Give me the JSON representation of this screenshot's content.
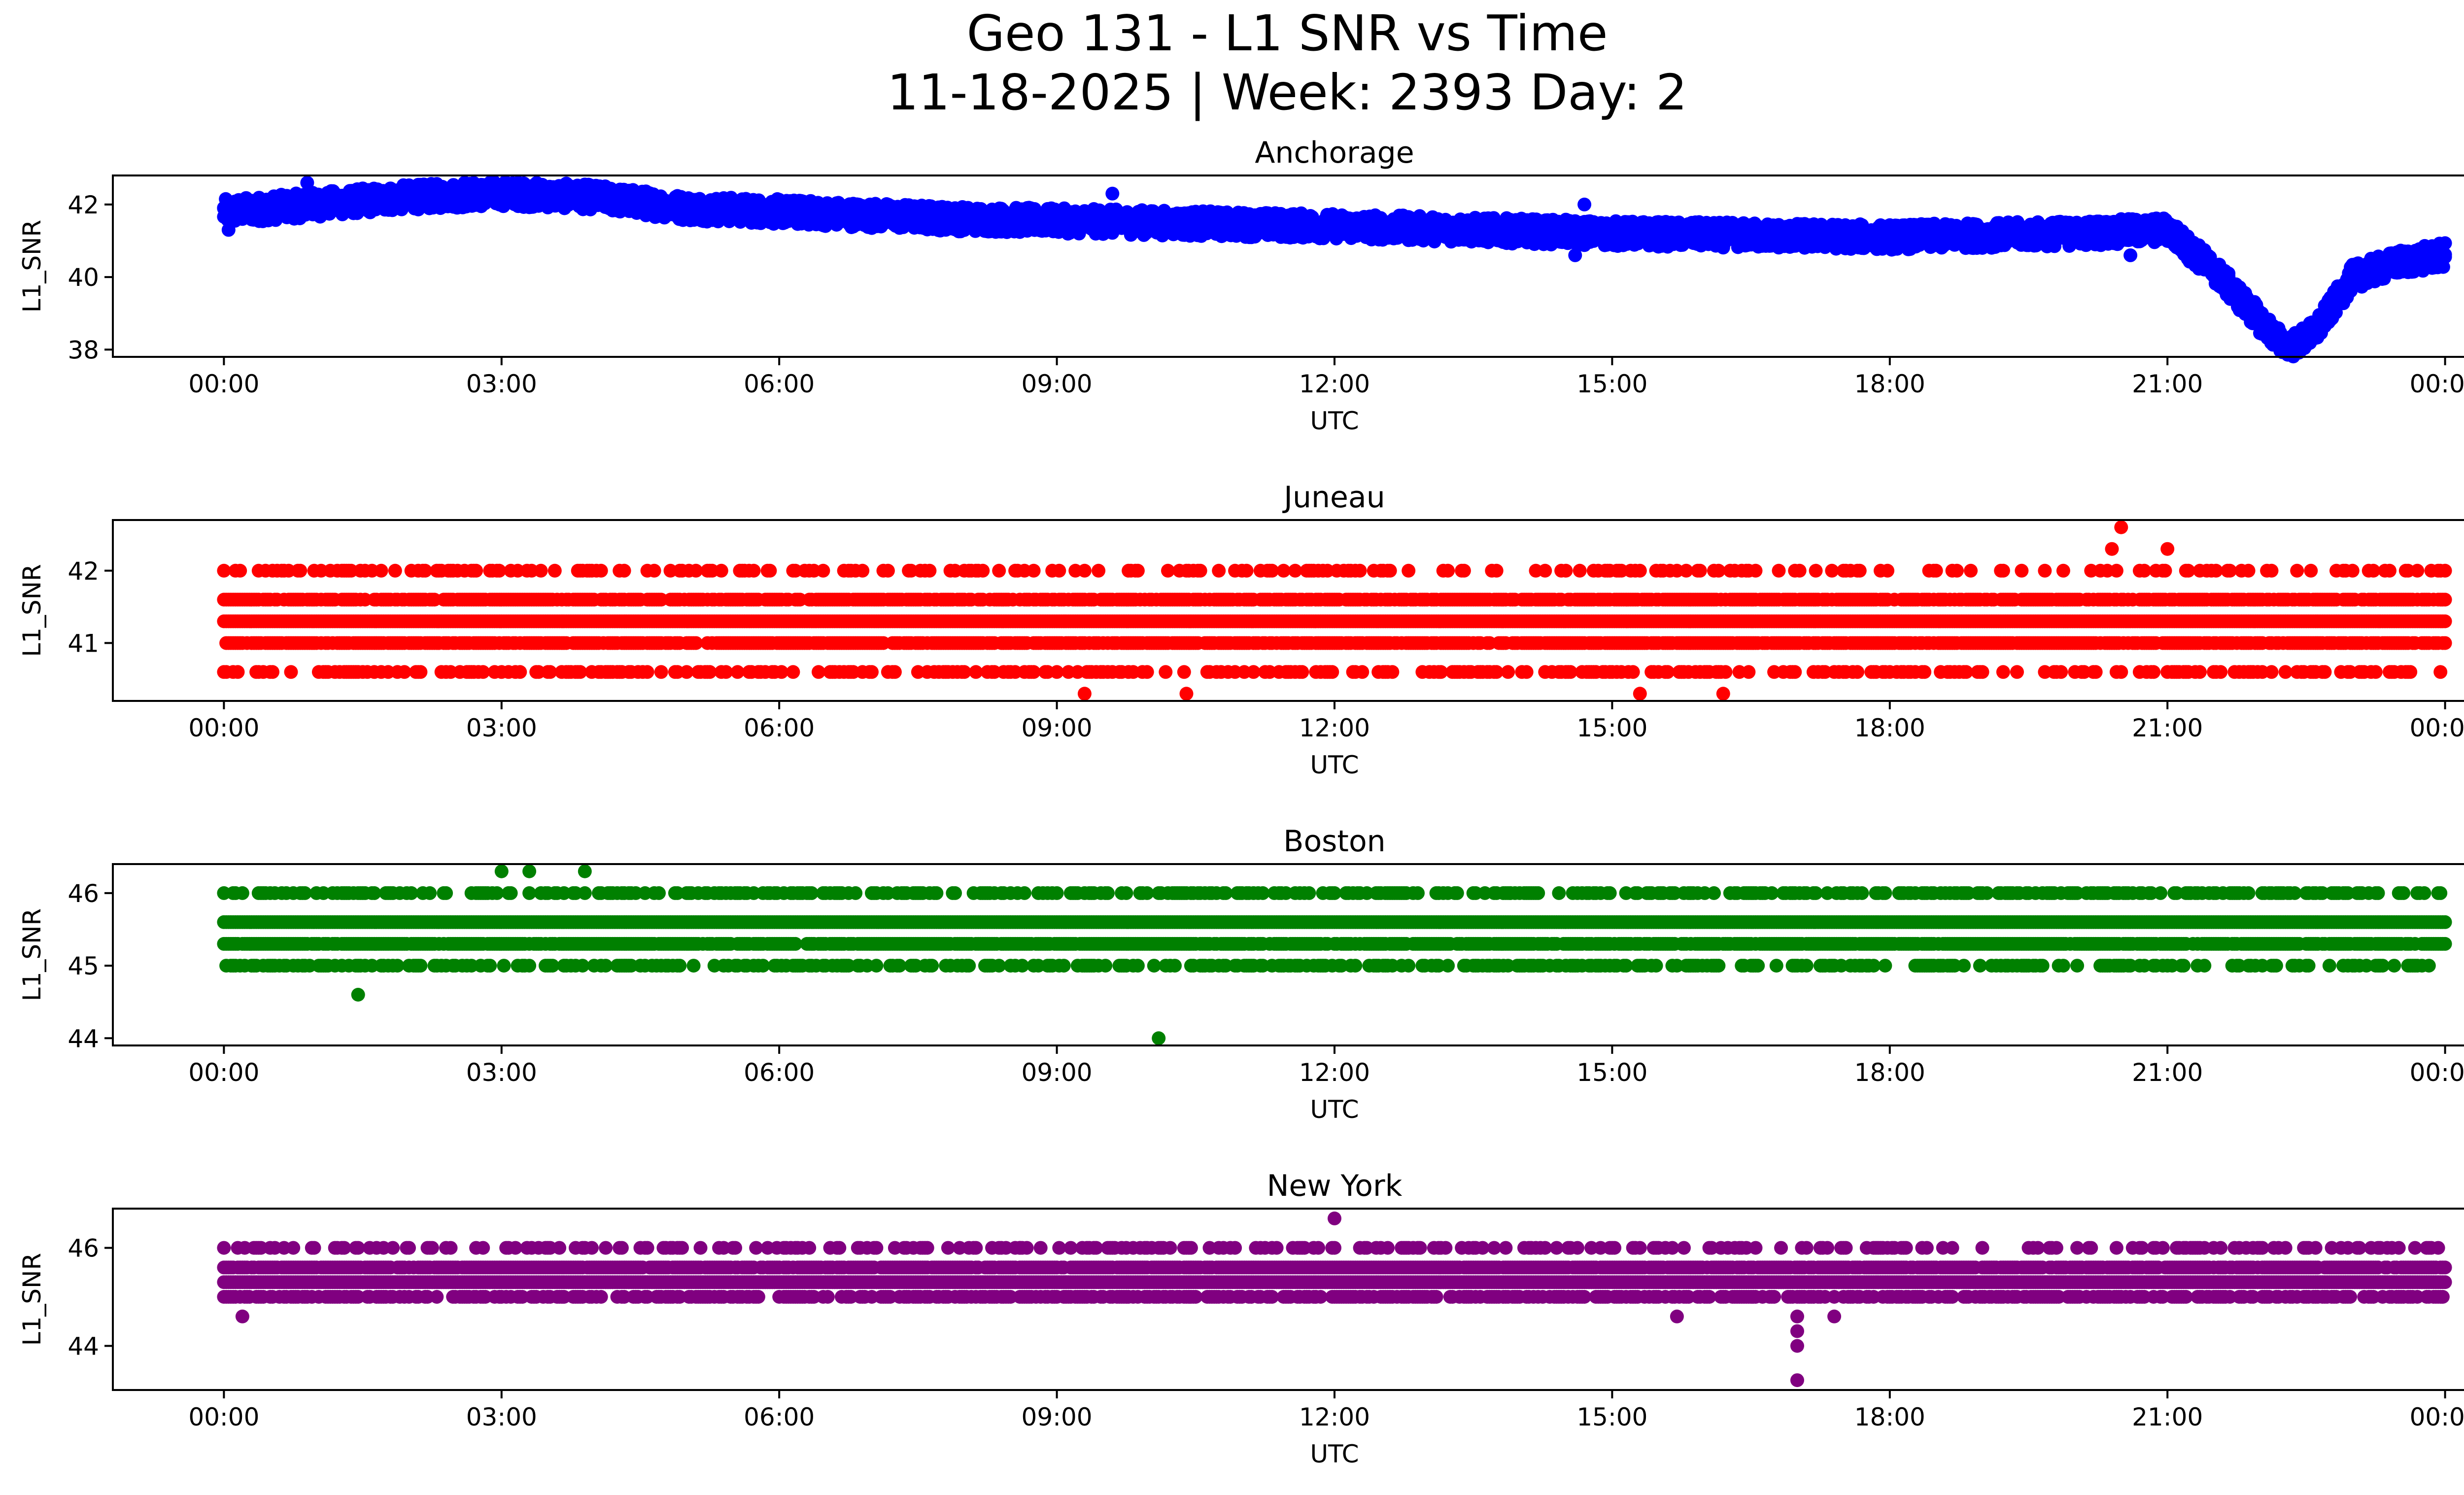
{
  "figure": {
    "title_line1": "Geo 131 - L1 SNR vs Time",
    "title_line2": "11-18-2025 | Week: 2393 Day: 2"
  },
  "chart_data": [
    {
      "type": "scatter",
      "title": "Anchorage",
      "xlabel": "UTC",
      "ylabel": "L1_SNR",
      "color": "#0000ff",
      "xlim": [
        -1.2,
        25.2
      ],
      "ylim": [
        37.8,
        42.8
      ],
      "x_ticks": [
        0,
        3,
        6,
        9,
        12,
        15,
        18,
        21,
        24
      ],
      "x_tick_labels": [
        "00:00",
        "03:00",
        "06:00",
        "09:00",
        "12:00",
        "15:00",
        "18:00",
        "21:00",
        "00:00"
      ],
      "y_ticks": [
        38,
        40,
        42
      ],
      "y_tick_labels": [
        "38",
        "40",
        "42"
      ],
      "profile": [
        [
          0,
          41.8
        ],
        [
          1,
          42.0
        ],
        [
          2,
          42.2
        ],
        [
          3,
          42.3
        ],
        [
          4,
          42.2
        ],
        [
          5,
          41.9
        ],
        [
          6,
          41.8
        ],
        [
          8,
          41.6
        ],
        [
          10,
          41.5
        ],
        [
          12,
          41.4
        ],
        [
          15,
          41.2
        ],
        [
          18,
          41.1
        ],
        [
          20,
          41.2
        ],
        [
          21,
          41.3
        ],
        [
          21.5,
          40.2
        ],
        [
          22,
          38.8
        ],
        [
          22.3,
          38.0
        ],
        [
          22.6,
          38.5
        ],
        [
          23,
          40.0
        ],
        [
          23.5,
          40.4
        ],
        [
          24,
          40.6
        ]
      ],
      "spread": 0.35,
      "outliers": [
        [
          0.05,
          41.3
        ],
        [
          0.9,
          42.6
        ],
        [
          2.6,
          42.6
        ],
        [
          9.6,
          42.3
        ],
        [
          14.6,
          40.6
        ],
        [
          14.7,
          42.0
        ],
        [
          20.6,
          40.6
        ]
      ]
    },
    {
      "type": "scatter",
      "title": "Juneau",
      "xlabel": "UTC",
      "ylabel": "L1_SNR",
      "color": "#ff0000",
      "xlim": [
        -1.2,
        25.2
      ],
      "ylim": [
        40.2,
        42.7
      ],
      "x_ticks": [
        0,
        3,
        6,
        9,
        12,
        15,
        18,
        21,
        24
      ],
      "x_tick_labels": [
        "00:00",
        "03:00",
        "06:00",
        "09:00",
        "12:00",
        "15:00",
        "18:00",
        "21:00",
        "00:00"
      ],
      "y_ticks": [
        41,
        42
      ],
      "y_tick_labels": [
        "41",
        "42"
      ],
      "quantized_levels": [
        40.6,
        41.0,
        41.3,
        41.6,
        42.0
      ],
      "level_prob": [
        0.35,
        0.85,
        1.0,
        0.8,
        0.25
      ],
      "outliers": [
        [
          0.1,
          40.6
        ],
        [
          2.9,
          42.0
        ],
        [
          9.3,
          40.3
        ],
        [
          10.4,
          40.3
        ],
        [
          12.6,
          42.0
        ],
        [
          15.3,
          40.3
        ],
        [
          16.2,
          40.3
        ],
        [
          20.4,
          42.3
        ],
        [
          20.5,
          42.6
        ],
        [
          21,
          42.3
        ]
      ]
    },
    {
      "type": "scatter",
      "title": "Boston",
      "xlabel": "UTC",
      "ylabel": "L1_SNR",
      "color": "#008000",
      "xlim": [
        -1.2,
        25.2
      ],
      "ylim": [
        43.9,
        46.4
      ],
      "x_ticks": [
        0,
        3,
        6,
        9,
        12,
        15,
        18,
        21,
        24
      ],
      "x_tick_labels": [
        "00:00",
        "03:00",
        "06:00",
        "09:00",
        "12:00",
        "15:00",
        "18:00",
        "21:00",
        "00:00"
      ],
      "y_ticks": [
        44,
        45,
        46
      ],
      "y_tick_labels": [
        "44",
        "45",
        "46"
      ],
      "quantized_levels": [
        45.0,
        45.3,
        45.6,
        46.0
      ],
      "level_prob": [
        0.4,
        0.9,
        1.0,
        0.45
      ],
      "outliers": [
        [
          1.45,
          44.6
        ],
        [
          10.1,
          44.0
        ],
        [
          3.0,
          46.3
        ],
        [
          3.3,
          46.3
        ],
        [
          3.9,
          46.3
        ],
        [
          13.9,
          46.0
        ],
        [
          18.85,
          46.0
        ],
        [
          19.7,
          46.0
        ],
        [
          20.3,
          45.0
        ],
        [
          20.6,
          45.0
        ]
      ]
    },
    {
      "type": "scatter",
      "title": "New York",
      "xlabel": "UTC",
      "ylabel": "L1_SNR",
      "color": "#800080",
      "xlim": [
        -1.2,
        25.2
      ],
      "ylim": [
        43.1,
        46.8
      ],
      "x_ticks": [
        0,
        3,
        6,
        9,
        12,
        15,
        18,
        21,
        24
      ],
      "x_tick_labels": [
        "00:00",
        "03:00",
        "06:00",
        "09:00",
        "12:00",
        "15:00",
        "18:00",
        "21:00",
        "00:00"
      ],
      "y_ticks": [
        44,
        46
      ],
      "y_tick_labels": [
        "44",
        "46"
      ],
      "quantized_levels": [
        45.0,
        45.3,
        45.6,
        46.0
      ],
      "level_prob": [
        0.6,
        1.0,
        0.9,
        0.3
      ],
      "outliers": [
        [
          0.2,
          44.6
        ],
        [
          12.0,
          46.6
        ],
        [
          12.0,
          46.0
        ],
        [
          15.7,
          44.6
        ],
        [
          17.0,
          44.6
        ],
        [
          17.0,
          44.3
        ],
        [
          17.0,
          44.0
        ],
        [
          17.0,
          43.3
        ],
        [
          17.4,
          44.6
        ],
        [
          8.3,
          46.0
        ],
        [
          8.6,
          46.0
        ]
      ]
    }
  ]
}
